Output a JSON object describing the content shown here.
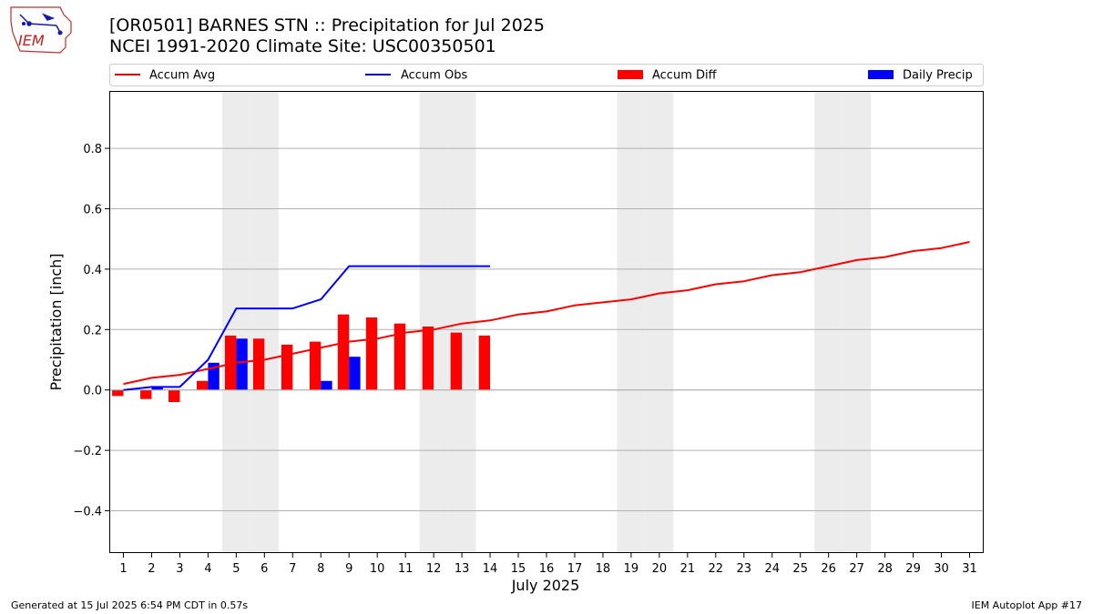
{
  "header": {
    "title_line1": "[OR0501] BARNES STN :: Precipitation for Jul 2025",
    "title_line2": "NCEI 1991-2020 Climate Site: USC00350501"
  },
  "logo": {
    "text": "IEM",
    "icon": "iem-iowa-logo"
  },
  "footer": {
    "generated": "Generated at 15 Jul 2025 6:54 PM CDT in 0.57s",
    "app": "IEM Autoplot App #17"
  },
  "colors": {
    "avg": "#ff0000",
    "obs": "#0000ff",
    "diff": "#ff0000",
    "daily": "#0000ff",
    "weekend": "#ececec",
    "grid": "#b0b0b0"
  },
  "chart_data": {
    "type": "bar",
    "xlabel": "July 2025",
    "ylabel": "Precipitation [inch]",
    "xlim": [
      0.5,
      31.5
    ],
    "ylim": [
      -0.54,
      0.99
    ],
    "yticks": [
      -0.4,
      -0.2,
      0.0,
      0.2,
      0.4,
      0.6,
      0.8
    ],
    "ytick_labels": [
      "−0.4",
      "−0.2",
      "0.0",
      "0.2",
      "0.4",
      "0.6",
      "0.8"
    ],
    "categories": [
      "1",
      "2",
      "3",
      "4",
      "5",
      "6",
      "7",
      "8",
      "9",
      "10",
      "11",
      "12",
      "13",
      "14",
      "15",
      "16",
      "17",
      "18",
      "19",
      "20",
      "21",
      "22",
      "23",
      "24",
      "25",
      "26",
      "27",
      "28",
      "29",
      "30",
      "31"
    ],
    "weekend_days": [
      5,
      6,
      12,
      13,
      19,
      20,
      26,
      27
    ],
    "grid": true,
    "legend_position": "top",
    "legend": [
      "Accum Avg",
      "Accum Obs",
      "Accum Diff",
      "Daily Precip"
    ],
    "series": [
      {
        "name": "Accum Avg",
        "type": "line",
        "color": "#ff0000",
        "x": [
          1,
          2,
          3,
          4,
          5,
          6,
          7,
          8,
          9,
          10,
          11,
          12,
          13,
          14,
          15,
          16,
          17,
          18,
          19,
          20,
          21,
          22,
          23,
          24,
          25,
          26,
          27,
          28,
          29,
          30,
          31
        ],
        "values": [
          0.02,
          0.04,
          0.05,
          0.07,
          0.09,
          0.1,
          0.12,
          0.14,
          0.16,
          0.17,
          0.19,
          0.2,
          0.22,
          0.23,
          0.25,
          0.26,
          0.28,
          0.29,
          0.3,
          0.32,
          0.33,
          0.35,
          0.36,
          0.38,
          0.39,
          0.41,
          0.43,
          0.44,
          0.46,
          0.47,
          0.49
        ]
      },
      {
        "name": "Accum Obs",
        "type": "line",
        "color": "#0000ff",
        "x": [
          1,
          2,
          3,
          4,
          5,
          6,
          7,
          8,
          9,
          10,
          11,
          12,
          13,
          14
        ],
        "values": [
          0.0,
          0.01,
          0.01,
          0.1,
          0.27,
          0.27,
          0.27,
          0.3,
          0.41,
          0.41,
          0.41,
          0.41,
          0.41,
          0.41
        ]
      },
      {
        "name": "Accum Diff",
        "type": "bar",
        "color": "#ff0000",
        "x": [
          1,
          2,
          3,
          4,
          5,
          6,
          7,
          8,
          9,
          10,
          11,
          12,
          13,
          14
        ],
        "values": [
          -0.02,
          -0.03,
          -0.04,
          0.03,
          0.18,
          0.17,
          0.15,
          0.16,
          0.25,
          0.24,
          0.22,
          0.21,
          0.19,
          0.18
        ]
      },
      {
        "name": "Daily Precip",
        "type": "bar",
        "color": "#0000ff",
        "x": [
          1,
          2,
          3,
          4,
          5,
          6,
          7,
          8,
          9,
          10,
          11,
          12,
          13,
          14
        ],
        "values": [
          0.0,
          0.01,
          0.0,
          0.09,
          0.17,
          0.0,
          0.0,
          0.03,
          0.11,
          0.0,
          0.0,
          0.0,
          0.0,
          0.0
        ]
      }
    ]
  }
}
